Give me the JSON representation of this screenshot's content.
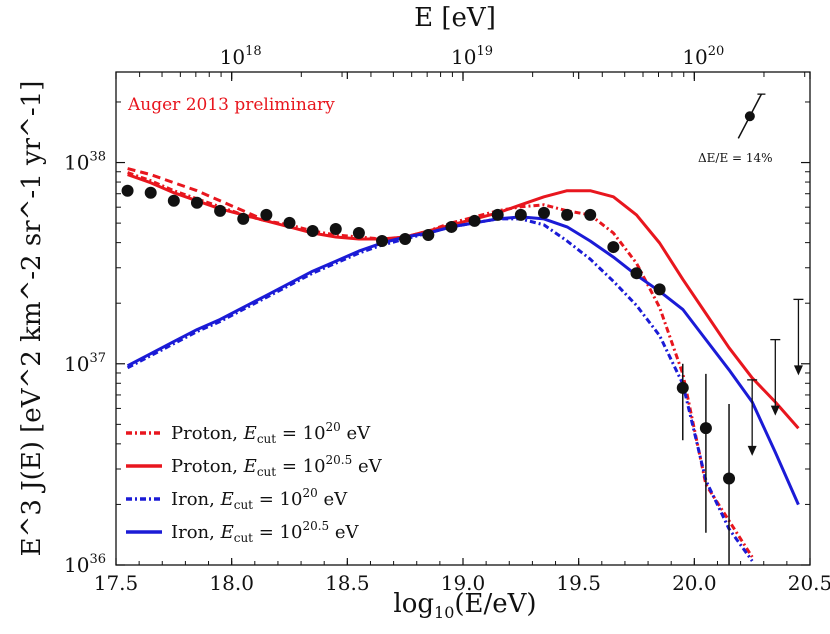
{
  "chart_data": {
    "type": "line",
    "title": "",
    "annotation": "Auger 2013 preliminary",
    "annotation_color": "#e8161e",
    "xlabel": "log10(E/eV)",
    "xlabel_parts": {
      "fn": "log",
      "sub": "10",
      "arg": "(E/eV)"
    },
    "ylabel": "E^3 J(E) [eV^2 km^-2 sr^-1 yr^-1]",
    "top_xlabel": "E [eV]",
    "xlim": [
      17.5,
      20.5
    ],
    "ylim_log10": [
      36,
      38.45
    ],
    "x_ticks": [
      17.5,
      18.0,
      18.5,
      19.0,
      19.5,
      20.0,
      20.5
    ],
    "x_tick_labels": [
      "17.5",
      "18.0",
      "18.5",
      "19.0",
      "19.5",
      "20.0",
      "20.5"
    ],
    "y_ticks": [
      {
        "value": 36,
        "base": "10",
        "exp": "36"
      },
      {
        "value": 37,
        "base": "10",
        "exp": "37"
      },
      {
        "value": 38,
        "base": "10",
        "exp": "38"
      }
    ],
    "top_ticks": [
      {
        "value": 18,
        "base": "10",
        "exp": "18"
      },
      {
        "value": 19,
        "base": "10",
        "exp": "19"
      },
      {
        "value": 20,
        "base": "10",
        "exp": "20"
      }
    ],
    "resolution_note": "ΔE/E = 14%",
    "series": [
      {
        "name": "Proton, E_cut = 10^20 eV",
        "label": {
          "prefix": "Proton, ",
          "e": "E",
          "sub": "cut",
          "mid": " = 10",
          "exp": "20",
          "unit": " eV"
        },
        "color": "#e8161e",
        "dash": "6,3,2,3",
        "width": 3,
        "x": [
          17.55,
          17.65,
          17.75,
          17.85,
          17.95,
          18.05,
          18.15,
          18.25,
          18.35,
          18.45,
          18.55,
          18.65,
          18.75,
          18.85,
          18.95,
          19.05,
          19.15,
          19.25,
          19.35,
          19.45,
          19.55,
          19.65,
          19.75,
          19.85,
          19.95,
          20.05,
          20.15,
          20.25
        ],
        "y": [
          37.95,
          37.91,
          37.86,
          37.82,
          37.78,
          37.74,
          37.71,
          37.69,
          37.66,
          37.64,
          37.63,
          37.62,
          37.63,
          37.66,
          37.7,
          37.73,
          37.76,
          37.78,
          37.79,
          37.76,
          37.74,
          37.65,
          37.5,
          37.28,
          36.95,
          36.4,
          36.22,
          36.04
        ]
      },
      {
        "name": "Proton, E_cut = 10^20.5 eV",
        "label": {
          "prefix": "Proton, ",
          "e": "E",
          "sub": "cut",
          "mid": " = 10",
          "exp": "20.5",
          "unit": " eV"
        },
        "color": "#e8161e",
        "dash": "",
        "width": 3,
        "x": [
          17.55,
          17.65,
          17.75,
          17.85,
          17.95,
          18.05,
          18.15,
          18.25,
          18.35,
          18.45,
          18.55,
          18.65,
          18.75,
          18.85,
          18.95,
          19.05,
          19.15,
          19.25,
          19.35,
          19.45,
          19.55,
          19.65,
          19.75,
          19.85,
          19.95,
          20.05,
          20.15,
          20.25,
          20.35,
          20.45
        ],
        "y": [
          37.94,
          37.9,
          37.85,
          37.81,
          37.77,
          37.74,
          37.71,
          37.68,
          37.65,
          37.63,
          37.62,
          37.62,
          37.63,
          37.66,
          37.69,
          37.72,
          37.75,
          37.79,
          37.83,
          37.86,
          37.86,
          37.83,
          37.74,
          37.6,
          37.42,
          37.25,
          37.08,
          36.93,
          36.81,
          36.68
        ]
      },
      {
        "name": "Proton, E_cut = 10^20 eV (alt)",
        "color": "#e8161e",
        "dash": "8,5",
        "width": 3,
        "legend": false,
        "x": [
          17.55,
          17.65,
          17.75,
          17.85,
          17.95,
          18.05,
          18.15
        ],
        "y": [
          37.97,
          37.94,
          37.9,
          37.86,
          37.81,
          37.76,
          37.71
        ]
      },
      {
        "name": "Iron, E_cut = 10^20 eV",
        "label": {
          "prefix": "Iron, ",
          "e": "E",
          "sub": "cut",
          "mid": " = 10",
          "exp": "20",
          "unit": " eV"
        },
        "color": "#1b1bd6",
        "dash": "6,3,2,3",
        "width": 3,
        "x": [
          17.55,
          17.65,
          17.75,
          17.85,
          17.95,
          18.05,
          18.15,
          18.25,
          18.35,
          18.45,
          18.55,
          18.65,
          18.75,
          18.85,
          18.95,
          19.05,
          19.15,
          19.25,
          19.35,
          19.45,
          19.55,
          19.65,
          19.75,
          19.85,
          19.95,
          20.05,
          20.15,
          20.25
        ],
        "y": [
          36.98,
          37.04,
          37.1,
          37.16,
          37.21,
          37.27,
          37.33,
          37.39,
          37.45,
          37.5,
          37.55,
          37.59,
          37.62,
          37.65,
          37.68,
          37.7,
          37.72,
          37.72,
          37.69,
          37.61,
          37.52,
          37.41,
          37.29,
          37.14,
          36.9,
          36.42,
          36.18,
          36.02
        ]
      },
      {
        "name": "Iron, E_cut = 10^20.5 eV",
        "label": {
          "prefix": "Iron, ",
          "e": "E",
          "sub": "cut",
          "mid": " = 10",
          "exp": "20.5",
          "unit": " eV"
        },
        "color": "#1b1bd6",
        "dash": "",
        "width": 3,
        "x": [
          17.55,
          17.65,
          17.75,
          17.85,
          17.95,
          18.05,
          18.15,
          18.25,
          18.35,
          18.45,
          18.55,
          18.65,
          18.75,
          18.85,
          18.95,
          19.05,
          19.15,
          19.25,
          19.35,
          19.45,
          19.55,
          19.65,
          19.75,
          19.85,
          19.95,
          20.05,
          20.15,
          20.25,
          20.35,
          20.45
        ],
        "y": [
          36.99,
          37.05,
          37.11,
          37.17,
          37.22,
          37.28,
          37.34,
          37.4,
          37.46,
          37.51,
          37.56,
          37.6,
          37.63,
          37.65,
          37.68,
          37.7,
          37.72,
          37.73,
          37.72,
          37.68,
          37.61,
          37.53,
          37.44,
          37.36,
          37.27,
          37.12,
          36.97,
          36.81,
          36.56,
          36.3
        ]
      }
    ],
    "data_points": [
      {
        "x": 17.55,
        "y": 37.86
      },
      {
        "x": 17.65,
        "y": 37.85
      },
      {
        "x": 17.75,
        "y": 37.81
      },
      {
        "x": 17.85,
        "y": 37.8
      },
      {
        "x": 17.95,
        "y": 37.76
      },
      {
        "x": 18.05,
        "y": 37.72
      },
      {
        "x": 18.15,
        "y": 37.74
      },
      {
        "x": 18.25,
        "y": 37.7
      },
      {
        "x": 18.35,
        "y": 37.66
      },
      {
        "x": 18.45,
        "y": 37.67
      },
      {
        "x": 18.55,
        "y": 37.65
      },
      {
        "x": 18.65,
        "y": 37.61
      },
      {
        "x": 18.75,
        "y": 37.62
      },
      {
        "x": 18.85,
        "y": 37.64
      },
      {
        "x": 18.95,
        "y": 37.68
      },
      {
        "x": 19.05,
        "y": 37.71
      },
      {
        "x": 19.15,
        "y": 37.74
      },
      {
        "x": 19.25,
        "y": 37.74
      },
      {
        "x": 19.35,
        "y": 37.75
      },
      {
        "x": 19.45,
        "y": 37.74
      },
      {
        "x": 19.55,
        "y": 37.74
      },
      {
        "x": 19.65,
        "y": 37.58
      },
      {
        "x": 19.75,
        "y": 37.45
      },
      {
        "x": 19.85,
        "y": 37.37
      },
      {
        "x": 19.95,
        "y": 36.88,
        "err": [
          36.62,
          37.0
        ]
      },
      {
        "x": 20.05,
        "y": 36.68,
        "err": [
          36.16,
          36.95
        ]
      },
      {
        "x": 20.15,
        "y": 36.43,
        "err": [
          36.0,
          36.8
        ]
      }
    ],
    "upper_limits": [
      {
        "x": 20.25,
        "y": 36.92
      },
      {
        "x": 20.35,
        "y": 37.12
      },
      {
        "x": 20.45,
        "y": 37.32
      }
    ],
    "resolution_marker": {
      "x": 20.24,
      "y": 38.23,
      "x_lo": 20.19,
      "x_hi": 20.29,
      "y_lo": 38.12,
      "y_hi": 38.34
    }
  }
}
